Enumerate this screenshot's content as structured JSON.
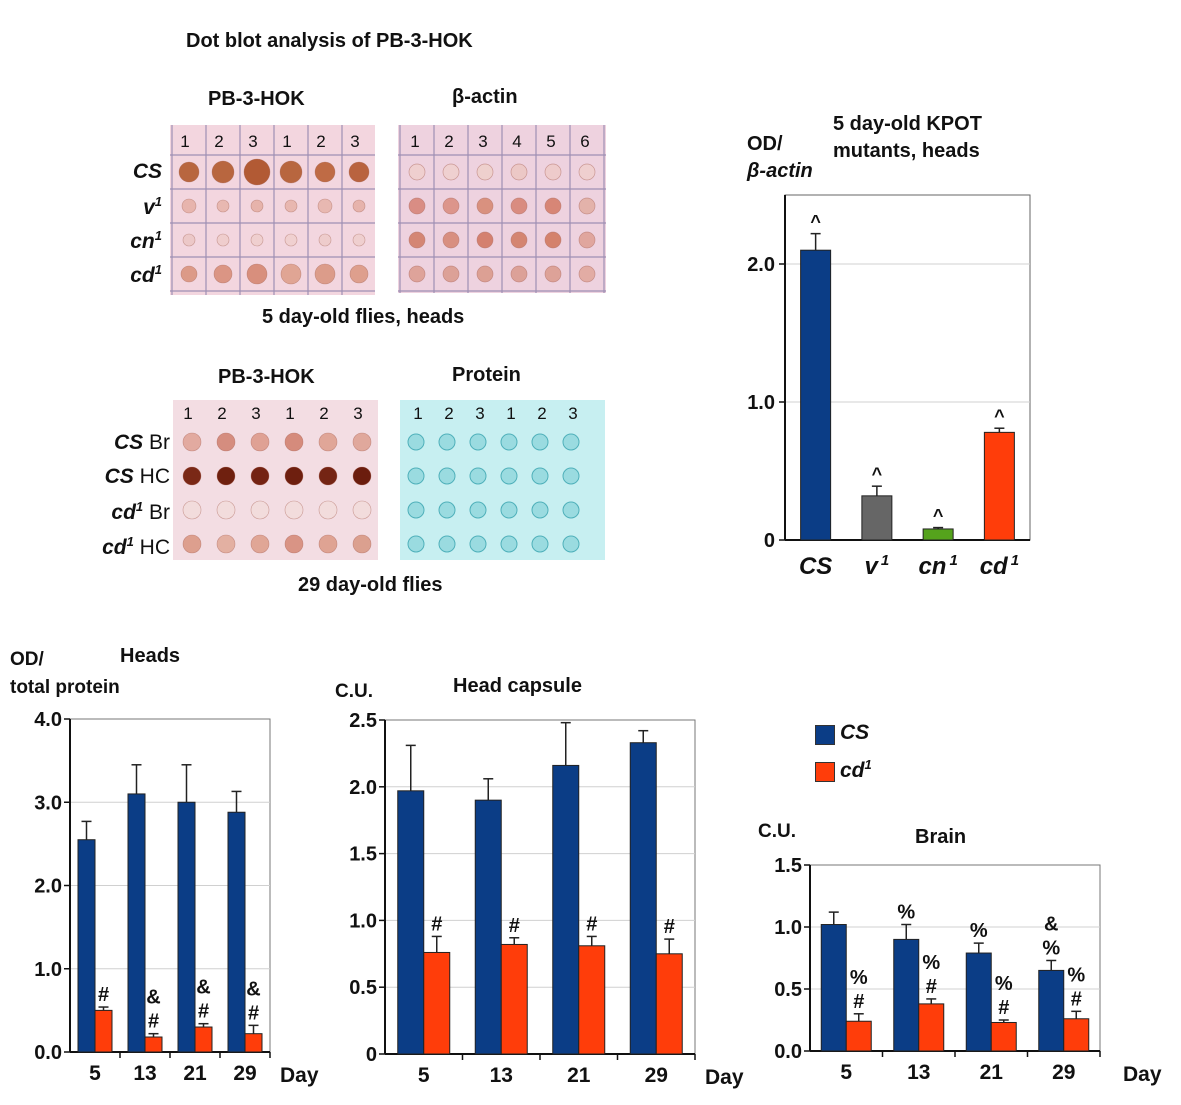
{
  "figure_title": "Dot blot analysis of PB-3-HOK",
  "blot1": {
    "left_title": "PB-3-HOK",
    "right_title": "β-actin",
    "left_lanes": [
      "1",
      "2",
      "3",
      "1",
      "2",
      "3"
    ],
    "right_lanes": [
      "1",
      "2",
      "3",
      "4",
      "5",
      "6"
    ],
    "rows": [
      {
        "main": "CS",
        "sup": ""
      },
      {
        "main": "v",
        "sup": "1"
      },
      {
        "main": "cn",
        "sup": "1"
      },
      {
        "main": "cd",
        "sup": "1"
      }
    ],
    "caption": "5 day-old flies, heads"
  },
  "blot2": {
    "left_title": "PB-3-HOK",
    "right_title": "Protein",
    "left_lanes": [
      "1",
      "2",
      "3",
      "1",
      "2",
      "3"
    ],
    "right_lanes": [
      "1",
      "2",
      "3",
      "1",
      "2",
      "3"
    ],
    "rows": [
      {
        "main": "CS",
        "sup": "",
        "suffix": "Br"
      },
      {
        "main": "CS",
        "sup": "",
        "suffix": "HC"
      },
      {
        "main": "cd",
        "sup": "1",
        "suffix": "Br"
      },
      {
        "main": "cd",
        "sup": "1",
        "suffix": "HC"
      }
    ],
    "caption": "29 day-old flies"
  },
  "legend": {
    "items": [
      {
        "main": "CS",
        "sup": "",
        "color": "#0b3d86"
      },
      {
        "main": "cd",
        "sup": "1",
        "color": "#ff3d0a"
      }
    ]
  },
  "colors": {
    "cs": "#0b3d86",
    "cd": "#ff3d0a",
    "v": "#666666",
    "cn": "#55a31c",
    "blot_pink": "#f1d3dd",
    "blot_cyan": "#c5eef0"
  },
  "chart_data": [
    {
      "id": "kpot",
      "type": "bar",
      "title": "5 day-old KPOT mutants, heads",
      "title_lines": [
        "5 day-old KPOT",
        "mutants, heads"
      ],
      "ylabel_lines": [
        "OD/",
        "β-actin"
      ],
      "categories": [
        {
          "main": "CS",
          "sup": ""
        },
        {
          "main": "v",
          "sup": "1"
        },
        {
          "main": "cn",
          "sup": "1"
        },
        {
          "main": "cd",
          "sup": "1"
        }
      ],
      "values": [
        2.1,
        0.32,
        0.08,
        0.78
      ],
      "errors": [
        0.12,
        0.07,
        0.01,
        0.03
      ],
      "annotations": [
        "^",
        "^",
        "^",
        "^"
      ],
      "ylim": [
        0,
        2.5
      ],
      "yticks": [
        "0",
        "1.0",
        "2.0"
      ],
      "ytick_values": [
        0,
        1.0,
        2.0
      ],
      "grid": true
    },
    {
      "id": "heads",
      "type": "bar",
      "title": "Heads",
      "ylabel_lines": [
        "OD/",
        "total protein"
      ],
      "xlabel": "Day",
      "categories": [
        "5",
        "13",
        "21",
        "29"
      ],
      "ylim": [
        0,
        4.0
      ],
      "yticks": [
        "0.0",
        "1.0",
        "2.0",
        "3.0",
        "4.0"
      ],
      "ytick_values": [
        0,
        1,
        2,
        3,
        4
      ],
      "series": [
        {
          "name": "CS",
          "values": [
            2.55,
            3.1,
            3.0,
            2.88
          ],
          "errors": [
            0.22,
            0.35,
            0.45,
            0.25
          ],
          "annotations": [
            "",
            "",
            "",
            ""
          ]
        },
        {
          "name": "cd1",
          "values": [
            0.5,
            0.18,
            0.3,
            0.22
          ],
          "errors": [
            0.04,
            0.04,
            0.04,
            0.1
          ],
          "annotations": [
            "#",
            "&\n#",
            "&\n#",
            "&\n#"
          ]
        }
      ],
      "grid": true
    },
    {
      "id": "headcapsule",
      "type": "bar",
      "title": "Head capsule",
      "ylabel_lines": [
        "C.U."
      ],
      "xlabel": "Day",
      "categories": [
        "5",
        "13",
        "21",
        "29"
      ],
      "ylim": [
        0,
        2.5
      ],
      "yticks": [
        "0",
        "0.5",
        "1.0",
        "1.5",
        "2.0",
        "2.5"
      ],
      "ytick_values": [
        0,
        0.5,
        1.0,
        1.5,
        2.0,
        2.5
      ],
      "series": [
        {
          "name": "CS",
          "values": [
            1.97,
            1.9,
            2.16,
            2.33
          ],
          "errors": [
            0.34,
            0.16,
            0.32,
            0.09
          ],
          "annotations": [
            "",
            "",
            "",
            ""
          ]
        },
        {
          "name": "cd1",
          "values": [
            0.76,
            0.82,
            0.81,
            0.75
          ],
          "errors": [
            0.12,
            0.05,
            0.07,
            0.11
          ],
          "annotations": [
            "#",
            "#",
            "#",
            "#"
          ]
        }
      ],
      "grid": true
    },
    {
      "id": "brain",
      "type": "bar",
      "title": "Brain",
      "ylabel_lines": [
        "C.U."
      ],
      "xlabel": "Day",
      "categories": [
        "5",
        "13",
        "21",
        "29"
      ],
      "ylim": [
        0,
        1.5
      ],
      "yticks": [
        "0.0",
        "0.5",
        "1.0",
        "1.5"
      ],
      "ytick_values": [
        0,
        0.5,
        1.0,
        1.5
      ],
      "series": [
        {
          "name": "CS",
          "values": [
            1.02,
            0.9,
            0.79,
            0.65
          ],
          "errors": [
            0.1,
            0.12,
            0.08,
            0.08
          ],
          "annotations": [
            "",
            "%",
            "%",
            "&\n%"
          ]
        },
        {
          "name": "cd1",
          "values": [
            0.24,
            0.38,
            0.23,
            0.26
          ],
          "errors": [
            0.06,
            0.04,
            0.02,
            0.06
          ],
          "annotations": [
            "%\n#",
            "%\n#",
            "%\n#",
            "%\n#"
          ]
        }
      ],
      "grid": true
    }
  ]
}
